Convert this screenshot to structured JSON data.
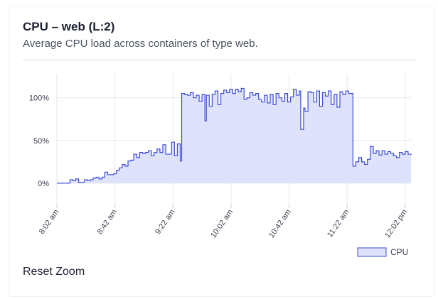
{
  "card": {
    "title": "CPU – web (L:2)",
    "subtitle": "Average CPU load across containers of type web.",
    "reset_label": "Reset Zoom"
  },
  "colors": {
    "line": "#3b4bd6",
    "fill": "#dfe2fb",
    "grid": "#e6e7ea"
  },
  "chart_data": {
    "type": "area",
    "step": true,
    "title": "",
    "xlabel": "",
    "ylabel": "",
    "x_start": "8:02 am",
    "x_end": "12:06 pm",
    "x_range_minutes": [
      482,
      726
    ],
    "y_range_percent": [
      -25,
      128
    ],
    "y_ticks": [
      {
        "value": 0,
        "label": "0%"
      },
      {
        "value": 50,
        "label": "50%"
      },
      {
        "value": 100,
        "label": "100%"
      }
    ],
    "x_ticks": [
      {
        "minute": 482,
        "label": "8:02 am"
      },
      {
        "minute": 522,
        "label": "8:42 am"
      },
      {
        "minute": 562,
        "label": "9:22 am"
      },
      {
        "minute": 602,
        "label": "10:02 am"
      },
      {
        "minute": 642,
        "label": "10:42 am"
      },
      {
        "minute": 682,
        "label": "11:22 am"
      },
      {
        "minute": 722,
        "label": "12:02 pm"
      }
    ],
    "grid": true,
    "legend": {
      "position": "bottom-right",
      "entries": [
        "CPU"
      ]
    },
    "series": [
      {
        "name": "CPU",
        "points": [
          [
            482,
            0
          ],
          [
            484,
            0
          ],
          [
            486,
            0
          ],
          [
            488,
            0
          ],
          [
            491,
            4
          ],
          [
            493,
            3
          ],
          [
            495,
            5
          ],
          [
            497,
            1
          ],
          [
            499,
            1
          ],
          [
            501,
            4
          ],
          [
            503,
            3
          ],
          [
            505,
            4
          ],
          [
            507,
            6
          ],
          [
            509,
            7
          ],
          [
            511,
            5
          ],
          [
            513,
            7
          ],
          [
            515,
            13
          ],
          [
            517,
            10
          ],
          [
            519,
            10
          ],
          [
            521,
            11
          ],
          [
            523,
            15
          ],
          [
            525,
            18
          ],
          [
            527,
            22
          ],
          [
            529,
            20
          ],
          [
            531,
            26
          ],
          [
            533,
            27
          ],
          [
            535,
            34
          ],
          [
            537,
            30
          ],
          [
            539,
            36
          ],
          [
            541,
            35
          ],
          [
            543,
            36
          ],
          [
            545,
            38
          ],
          [
            547,
            32
          ],
          [
            549,
            36
          ],
          [
            551,
            40
          ],
          [
            553,
            36
          ],
          [
            555,
            45
          ],
          [
            557,
            34
          ],
          [
            559,
            34
          ],
          [
            561,
            48
          ],
          [
            563,
            32
          ],
          [
            565,
            46
          ],
          [
            567,
            26
          ],
          [
            568,
            105
          ],
          [
            570,
            104
          ],
          [
            572,
            103
          ],
          [
            574,
            106
          ],
          [
            576,
            100
          ],
          [
            578,
            103
          ],
          [
            580,
            96
          ],
          [
            582,
            104
          ],
          [
            584,
            73
          ],
          [
            585,
            103
          ],
          [
            587,
            90
          ],
          [
            589,
            104
          ],
          [
            591,
            108
          ],
          [
            593,
            92
          ],
          [
            595,
            105
          ],
          [
            597,
            109
          ],
          [
            599,
            106
          ],
          [
            601,
            110
          ],
          [
            603,
            105
          ],
          [
            605,
            110
          ],
          [
            607,
            107
          ],
          [
            609,
            111
          ],
          [
            611,
            98
          ],
          [
            613,
            100
          ],
          [
            615,
            106
          ],
          [
            617,
            103
          ],
          [
            619,
            105
          ],
          [
            621,
            98
          ],
          [
            623,
            95
          ],
          [
            625,
            103
          ],
          [
            627,
            94
          ],
          [
            629,
            104
          ],
          [
            631,
            92
          ],
          [
            633,
            105
          ],
          [
            635,
            100
          ],
          [
            637,
            96
          ],
          [
            639,
            105
          ],
          [
            641,
            95
          ],
          [
            643,
            101
          ],
          [
            645,
            110
          ],
          [
            647,
            103
          ],
          [
            649,
            108
          ],
          [
            650,
            63
          ],
          [
            652,
            88
          ],
          [
            653,
            84
          ],
          [
            655,
            107
          ],
          [
            657,
            106
          ],
          [
            659,
            95
          ],
          [
            661,
            108
          ],
          [
            663,
            90
          ],
          [
            665,
            106
          ],
          [
            667,
            102
          ],
          [
            669,
            108
          ],
          [
            671,
            92
          ],
          [
            673,
            104
          ],
          [
            675,
            89
          ],
          [
            677,
            107
          ],
          [
            679,
            104
          ],
          [
            681,
            108
          ],
          [
            683,
            105
          ],
          [
            685,
            105
          ],
          [
            686,
            20
          ],
          [
            688,
            25
          ],
          [
            690,
            30
          ],
          [
            692,
            25
          ],
          [
            694,
            22
          ],
          [
            696,
            28
          ],
          [
            698,
            43
          ],
          [
            700,
            35
          ],
          [
            702,
            38
          ],
          [
            704,
            33
          ],
          [
            706,
            38
          ],
          [
            708,
            34
          ],
          [
            710,
            37
          ],
          [
            712,
            35
          ],
          [
            714,
            32
          ],
          [
            716,
            30
          ],
          [
            718,
            36
          ],
          [
            720,
            34
          ],
          [
            722,
            37
          ],
          [
            724,
            34
          ],
          [
            726,
            33
          ]
        ]
      }
    ]
  }
}
